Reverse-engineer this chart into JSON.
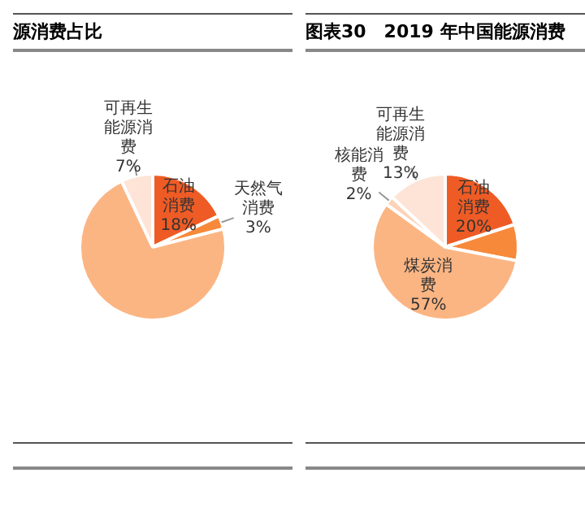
{
  "chart_data": [
    {
      "type": "pie",
      "title": "源消费占比",
      "categories": [
        "石油消费",
        "天然气消费",
        null,
        "可再生能源消费"
      ],
      "values": [
        18,
        3,
        72,
        7
      ],
      "value_labels": [
        "18%",
        "3%",
        null,
        "7%"
      ],
      "colors": [
        "#ef5b25",
        "#f7893a",
        "#fbb583",
        "#fde4d6"
      ],
      "legend": false
    },
    {
      "type": "pie",
      "title": "图表30　2019 年中国能源消费",
      "categories": [
        "石油消费",
        null,
        "煤炭消费",
        "核能消费",
        "可再生能源消费"
      ],
      "values": [
        20,
        8,
        57,
        2,
        13
      ],
      "value_labels": [
        "20%",
        null,
        "57%",
        "2%",
        "13%"
      ],
      "colors": [
        "#ef5b25",
        "#f7893a",
        "#fbb583",
        "#fcd3b8",
        "#fde4d6"
      ],
      "legend": false
    }
  ]
}
